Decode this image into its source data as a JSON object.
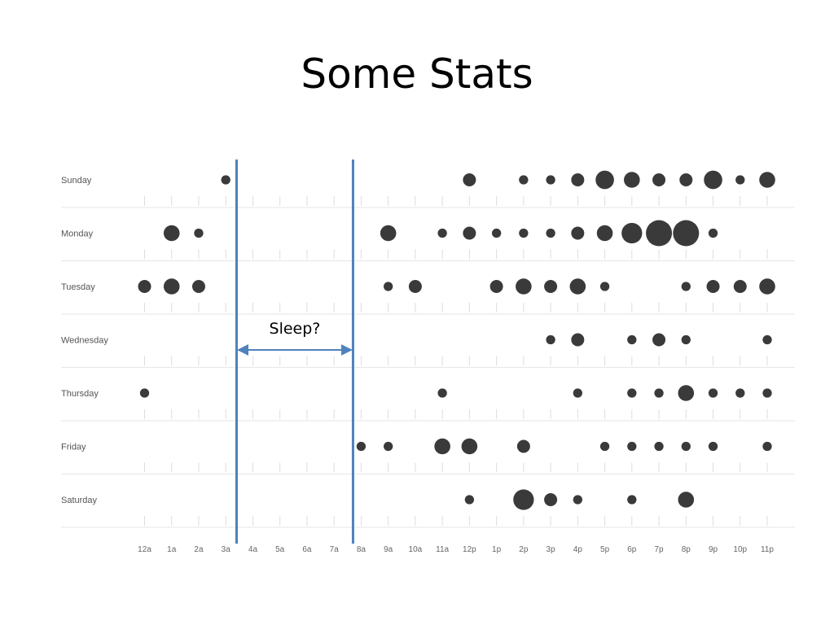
{
  "slide": {
    "title": "Some Stats"
  },
  "chart_data": {
    "type": "scatter",
    "title": "",
    "xlabel": "",
    "ylabel": "",
    "categories": [
      "12a",
      "1a",
      "2a",
      "3a",
      "4a",
      "5a",
      "6a",
      "7a",
      "8a",
      "9a",
      "10a",
      "11a",
      "12p",
      "1p",
      "2p",
      "3p",
      "4p",
      "5p",
      "6p",
      "7p",
      "8p",
      "9p",
      "10p",
      "11p"
    ],
    "rows": [
      "Sunday",
      "Monday",
      "Tuesday",
      "Wednesday",
      "Thursday",
      "Friday",
      "Saturday"
    ],
    "grid": true,
    "dot_color": "#3a3a3a",
    "marker_color": "#4f81bd",
    "points": [
      {
        "row": "Sunday",
        "hour": "3a",
        "value": 1
      },
      {
        "row": "Sunday",
        "hour": "12p",
        "value": 2
      },
      {
        "row": "Sunday",
        "hour": "2p",
        "value": 1
      },
      {
        "row": "Sunday",
        "hour": "3p",
        "value": 1
      },
      {
        "row": "Sunday",
        "hour": "4p",
        "value": 2
      },
      {
        "row": "Sunday",
        "hour": "5p",
        "value": 4
      },
      {
        "row": "Sunday",
        "hour": "6p",
        "value": 3
      },
      {
        "row": "Sunday",
        "hour": "7p",
        "value": 2
      },
      {
        "row": "Sunday",
        "hour": "8p",
        "value": 2
      },
      {
        "row": "Sunday",
        "hour": "9p",
        "value": 4
      },
      {
        "row": "Sunday",
        "hour": "10p",
        "value": 1
      },
      {
        "row": "Sunday",
        "hour": "11p",
        "value": 3
      },
      {
        "row": "Monday",
        "hour": "1a",
        "value": 3
      },
      {
        "row": "Monday",
        "hour": "2a",
        "value": 1
      },
      {
        "row": "Monday",
        "hour": "9a",
        "value": 3
      },
      {
        "row": "Monday",
        "hour": "11a",
        "value": 1
      },
      {
        "row": "Monday",
        "hour": "12p",
        "value": 2
      },
      {
        "row": "Monday",
        "hour": "1p",
        "value": 1
      },
      {
        "row": "Monday",
        "hour": "2p",
        "value": 1
      },
      {
        "row": "Monday",
        "hour": "3p",
        "value": 1
      },
      {
        "row": "Monday",
        "hour": "4p",
        "value": 2
      },
      {
        "row": "Monday",
        "hour": "5p",
        "value": 3
      },
      {
        "row": "Monday",
        "hour": "6p",
        "value": 5
      },
      {
        "row": "Monday",
        "hour": "7p",
        "value": 8
      },
      {
        "row": "Monday",
        "hour": "8p",
        "value": 8
      },
      {
        "row": "Monday",
        "hour": "9p",
        "value": 1
      },
      {
        "row": "Tuesday",
        "hour": "12a",
        "value": 2
      },
      {
        "row": "Tuesday",
        "hour": "1a",
        "value": 3
      },
      {
        "row": "Tuesday",
        "hour": "2a",
        "value": 2
      },
      {
        "row": "Tuesday",
        "hour": "9a",
        "value": 1
      },
      {
        "row": "Tuesday",
        "hour": "10a",
        "value": 2
      },
      {
        "row": "Tuesday",
        "hour": "1p",
        "value": 2
      },
      {
        "row": "Tuesday",
        "hour": "2p",
        "value": 3
      },
      {
        "row": "Tuesday",
        "hour": "3p",
        "value": 2
      },
      {
        "row": "Tuesday",
        "hour": "4p",
        "value": 3
      },
      {
        "row": "Tuesday",
        "hour": "5p",
        "value": 1
      },
      {
        "row": "Tuesday",
        "hour": "8p",
        "value": 1
      },
      {
        "row": "Tuesday",
        "hour": "9p",
        "value": 2
      },
      {
        "row": "Tuesday",
        "hour": "10p",
        "value": 2
      },
      {
        "row": "Tuesday",
        "hour": "11p",
        "value": 3
      },
      {
        "row": "Wednesday",
        "hour": "3p",
        "value": 1
      },
      {
        "row": "Wednesday",
        "hour": "4p",
        "value": 2
      },
      {
        "row": "Wednesday",
        "hour": "6p",
        "value": 1
      },
      {
        "row": "Wednesday",
        "hour": "7p",
        "value": 2
      },
      {
        "row": "Wednesday",
        "hour": "8p",
        "value": 1
      },
      {
        "row": "Wednesday",
        "hour": "11p",
        "value": 1
      },
      {
        "row": "Thursday",
        "hour": "12a",
        "value": 1
      },
      {
        "row": "Thursday",
        "hour": "11a",
        "value": 1
      },
      {
        "row": "Thursday",
        "hour": "4p",
        "value": 1
      },
      {
        "row": "Thursday",
        "hour": "6p",
        "value": 1
      },
      {
        "row": "Thursday",
        "hour": "7p",
        "value": 1
      },
      {
        "row": "Thursday",
        "hour": "8p",
        "value": 3
      },
      {
        "row": "Thursday",
        "hour": "9p",
        "value": 1
      },
      {
        "row": "Thursday",
        "hour": "10p",
        "value": 1
      },
      {
        "row": "Thursday",
        "hour": "11p",
        "value": 1
      },
      {
        "row": "Friday",
        "hour": "8a",
        "value": 1
      },
      {
        "row": "Friday",
        "hour": "9a",
        "value": 1
      },
      {
        "row": "Friday",
        "hour": "11a",
        "value": 3
      },
      {
        "row": "Friday",
        "hour": "12p",
        "value": 3
      },
      {
        "row": "Friday",
        "hour": "2p",
        "value": 2
      },
      {
        "row": "Friday",
        "hour": "5p",
        "value": 1
      },
      {
        "row": "Friday",
        "hour": "6p",
        "value": 1
      },
      {
        "row": "Friday",
        "hour": "7p",
        "value": 1
      },
      {
        "row": "Friday",
        "hour": "8p",
        "value": 1
      },
      {
        "row": "Friday",
        "hour": "9p",
        "value": 1
      },
      {
        "row": "Friday",
        "hour": "11p",
        "value": 1
      },
      {
        "row": "Saturday",
        "hour": "12p",
        "value": 1
      },
      {
        "row": "Saturday",
        "hour": "2p",
        "value": 5
      },
      {
        "row": "Saturday",
        "hour": "3p",
        "value": 2
      },
      {
        "row": "Saturday",
        "hour": "4p",
        "value": 1
      },
      {
        "row": "Saturday",
        "hour": "6p",
        "value": 1
      },
      {
        "row": "Saturday",
        "hour": "8p",
        "value": 3
      }
    ],
    "annotation": {
      "text": "Sleep?",
      "from_hour": 3.4,
      "to_hour": 7.7
    }
  }
}
